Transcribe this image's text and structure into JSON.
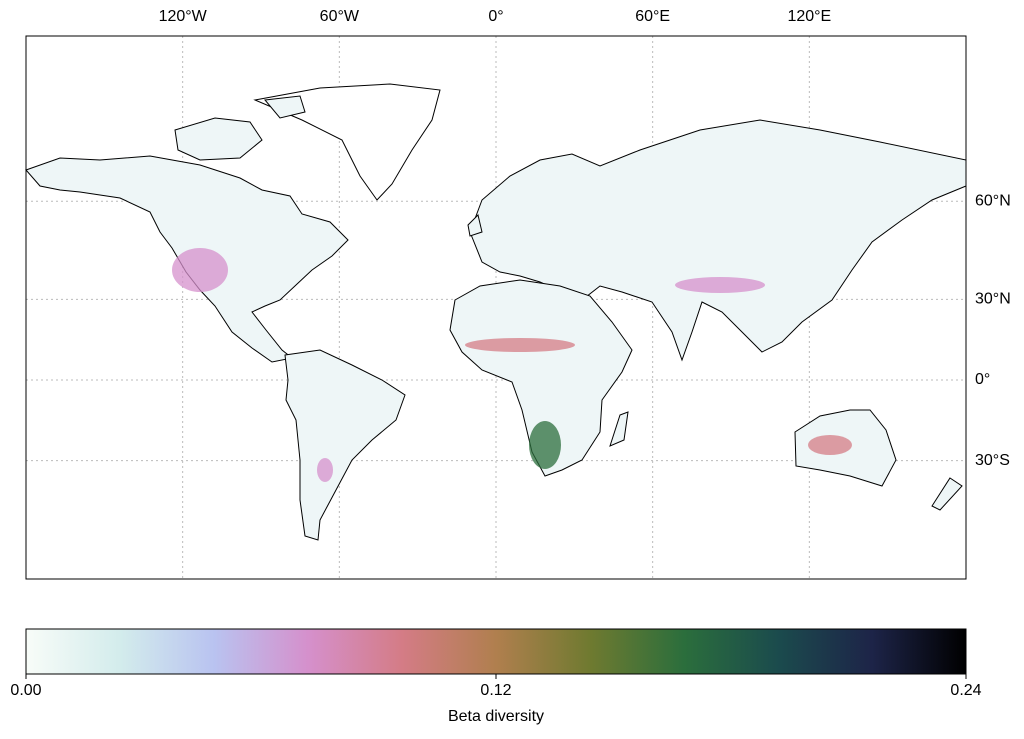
{
  "map": {
    "projection": "miller",
    "xlim": [
      -180,
      180
    ],
    "ylim": [
      -65,
      90
    ],
    "xticks": [
      {
        "value": -120,
        "label": "120°W"
      },
      {
        "value": -60,
        "label": "60°W"
      },
      {
        "value": 0,
        "label": "0°"
      },
      {
        "value": 60,
        "label": "60°E"
      },
      {
        "value": 120,
        "label": "120°E"
      }
    ],
    "yticks": [
      {
        "value": 60,
        "label": "60°N"
      },
      {
        "value": 30,
        "label": "30°N"
      },
      {
        "value": 0,
        "label": "0°"
      },
      {
        "value": -30,
        "label": "30°S"
      }
    ],
    "grid": true
  },
  "colorbar": {
    "label": "Beta diversity",
    "lim": [
      0,
      0.24
    ],
    "ticks": [
      {
        "value": 0,
        "label": "0.00"
      },
      {
        "value": 0.12,
        "label": "0.12"
      },
      {
        "value": 0.24,
        "label": "0.24"
      }
    ],
    "colors": [
      "#f8fcf8",
      "#d3ecec",
      "#b9c3f0",
      "#d590cc",
      "#d47c86",
      "#b07f4e",
      "#6f7a30",
      "#2b6e3c",
      "#1b4b4d",
      "#1d2448",
      "#000000"
    ]
  }
}
